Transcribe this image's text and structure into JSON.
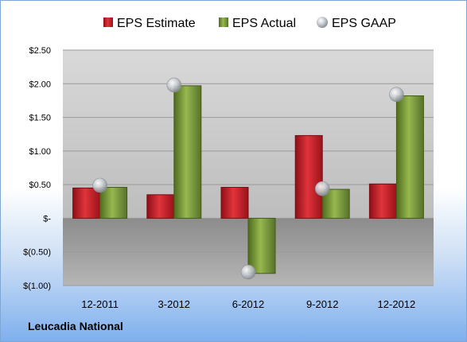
{
  "company": "Leucadia National",
  "chart_data": {
    "type": "bar",
    "categories": [
      "12-2011",
      "3-2012",
      "6-2012",
      "9-2012",
      "12-2012"
    ],
    "series": [
      {
        "name": "EPS Estimate",
        "type": "bar",
        "color": "#c0202a",
        "values": [
          0.45,
          0.35,
          0.46,
          1.23,
          0.51
        ]
      },
      {
        "name": "EPS Actual",
        "type": "bar",
        "color": "#7a9a3a",
        "values": [
          0.46,
          1.97,
          -0.82,
          0.43,
          1.82
        ]
      },
      {
        "name": "EPS GAAP",
        "type": "scatter",
        "color": "#b8bcc4",
        "values": [
          0.49,
          1.98,
          -0.8,
          0.44,
          1.84
        ]
      }
    ],
    "ylim": [
      -1.0,
      2.5
    ],
    "yticks": [
      2.5,
      2.0,
      1.5,
      1.0,
      0.5,
      0,
      -0.5,
      -1.0
    ],
    "ytick_labels": [
      "$2.50",
      "$2.00",
      "$1.50",
      "$1.00",
      "$0.50",
      "$-",
      "$(0.50)",
      "$(1.00)"
    ],
    "grid": true,
    "legend": "top"
  }
}
